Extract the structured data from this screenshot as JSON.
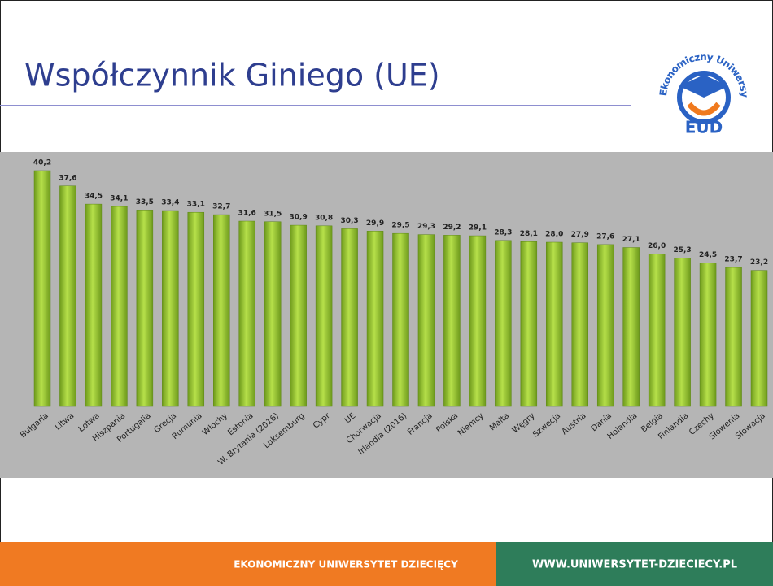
{
  "slide": {
    "title": "Współczynnik Giniego (UE)"
  },
  "logo": {
    "ring": "Ekonomiczny Uniwersytet Dziecięcy",
    "mark": "EUD"
  },
  "footer": {
    "left": "EKONOMICZNY UNIWERSYTET DZIECIĘCY",
    "right": "WWW.UNIWERSYTET-DZIECIECY.PL"
  },
  "chart_data": {
    "type": "bar",
    "categories": [
      "Bułgaria",
      "Litwa",
      "Łotwa",
      "Hiszpania",
      "Portugalia",
      "Grecja",
      "Rumunia",
      "Włochy",
      "Estonia",
      "W. Brytania (2016)",
      "Luksemburg",
      "Cypr",
      "UE",
      "Chorwacja",
      "Irlandia (2016)",
      "Francja",
      "Polska",
      "Niemcy",
      "Malta",
      "Węgry",
      "Szwecja",
      "Austria",
      "Dania",
      "Holandia",
      "Belgia",
      "Finlandia",
      "Czechy",
      "Słowenia",
      "Słowacja"
    ],
    "values": [
      40.2,
      37.6,
      34.5,
      34.1,
      33.5,
      33.4,
      33.1,
      32.7,
      31.6,
      31.5,
      30.9,
      30.8,
      30.3,
      29.9,
      29.5,
      29.3,
      29.2,
      29.1,
      28.3,
      28.1,
      28.0,
      27.9,
      27.6,
      27.1,
      26.0,
      25.3,
      24.5,
      23.7,
      23.2
    ],
    "value_labels": [
      "40,2",
      "37,6",
      "34,5",
      "34,1",
      "33,5",
      "33,4",
      "33,1",
      "32,7",
      "31,6",
      "31,5",
      "30,9",
      "30,8",
      "30,3",
      "29,9",
      "29,5",
      "29,3",
      "29,2",
      "29,1",
      "28,3",
      "28,1",
      "28,0",
      "27,9",
      "27,6",
      "27,1",
      "26,0",
      "25,3",
      "24,5",
      "23,7",
      "23,2"
    ],
    "color": "#9acd32"
  }
}
